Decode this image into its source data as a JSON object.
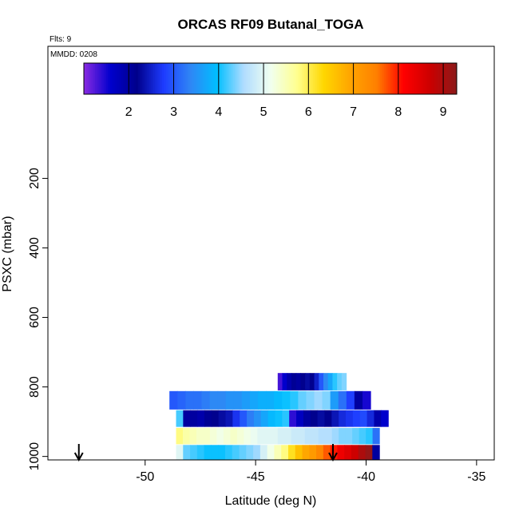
{
  "chart_data": {
    "type": "heatmap",
    "title": "ORCAS RF09 Butanal_TOGA",
    "annotations": {
      "flights": "Flts: 9",
      "date": "MMDD: 0208"
    },
    "xlabel": "Latitude (deg N)",
    "ylabel": "PSXC (mbar)",
    "xlim": [
      -54.4,
      -34.2
    ],
    "ylim": [
      1010,
      -180
    ],
    "y_inverted": true,
    "x_ticks": [
      -50,
      -45,
      -40,
      -35
    ],
    "x_tick_labels": [
      "-50",
      "-45",
      "-40",
      "-35"
    ],
    "y_ticks": [
      200,
      400,
      600,
      800,
      1000
    ],
    "y_tick_labels": [
      "200",
      "400",
      "600",
      "800",
      "1000"
    ],
    "colorbar": {
      "range": [
        1.0,
        9.3
      ],
      "ticks": [
        2,
        3,
        4,
        5,
        6,
        7,
        8,
        9
      ],
      "tick_labels": [
        "2",
        "3",
        "4",
        "5",
        "6",
        "7",
        "8",
        "9"
      ],
      "colors": [
        "#8a2be2",
        "#0000cd",
        "#00008b",
        "#1e3cff",
        "#2f86f5",
        "#00bfff",
        "#b0dcff",
        "#f0fff0",
        "#ffff90",
        "#ffd700",
        "#ffa500",
        "#ff7f00",
        "#ff0000",
        "#cc0000",
        "#8b1a1a"
      ]
    },
    "arrows_latitude": [
      -53.0,
      -41.5
    ],
    "layers": [
      {
        "p_top": 760,
        "p_bottom": 810,
        "lat_start": -44.0,
        "lat_end": -40.9,
        "values": [
          1.3,
          1.6,
          1.9,
          2.1,
          2.0,
          2.2,
          2.3,
          2.2,
          2.5,
          3.0,
          3.4,
          3.7,
          4.1,
          4.3,
          4.4
        ]
      },
      {
        "p_top": 812,
        "p_bottom": 865,
        "lat_start": -48.9,
        "lat_end": -39.8,
        "values": [
          3.0,
          3.1,
          3.2,
          3.2,
          3.3,
          3.4,
          3.4,
          3.5,
          3.5,
          3.6,
          3.7,
          3.8,
          3.8,
          3.9,
          4.0,
          4.1,
          4.3,
          4.4,
          4.5,
          4.4,
          3.6,
          3.2,
          2.8,
          2.0,
          1.5
        ]
      },
      {
        "p_top": 867,
        "p_bottom": 915,
        "lat_start": -48.6,
        "lat_end": -39.0,
        "values": [
          4.2,
          2.0,
          2.0,
          1.9,
          2.1,
          2.2,
          2.3,
          2.4,
          2.7,
          3.0,
          3.3,
          3.5,
          3.7,
          3.9,
          4.0,
          4.1,
          1.4,
          1.7,
          2.0,
          2.2,
          2.3,
          2.2,
          2.4,
          2.6,
          2.7,
          2.8,
          2.9,
          2.6,
          1.9,
          1.6
        ]
      },
      {
        "p_top": 918,
        "p_bottom": 965,
        "lat_start": -48.6,
        "lat_end": -39.4,
        "values": [
          5.8,
          5.6,
          5.5,
          5.4,
          5.4,
          5.3,
          5.2,
          5.3,
          5.4,
          5.3,
          5.2,
          5.1,
          5.0,
          5.0,
          5.0,
          4.9,
          4.9,
          4.8,
          4.8,
          4.7,
          4.7,
          4.6,
          4.6,
          4.5,
          4.4,
          4.4,
          4.3,
          4.2,
          4.1,
          3.2
        ]
      },
      {
        "p_top": 967,
        "p_bottom": 1010,
        "lat_start": -48.6,
        "lat_end": -39.4,
        "values": [
          5.0,
          4.3,
          4.2,
          4.1,
          4.0,
          4.0,
          4.0,
          4.1,
          4.2,
          4.3,
          4.4,
          4.5,
          4.9,
          5.2,
          5.5,
          5.8,
          6.2,
          6.6,
          6.9,
          7.1,
          7.4,
          7.7,
          8.0,
          8.3,
          8.5,
          8.7,
          9.0,
          9.2,
          2.0
        ]
      }
    ]
  }
}
